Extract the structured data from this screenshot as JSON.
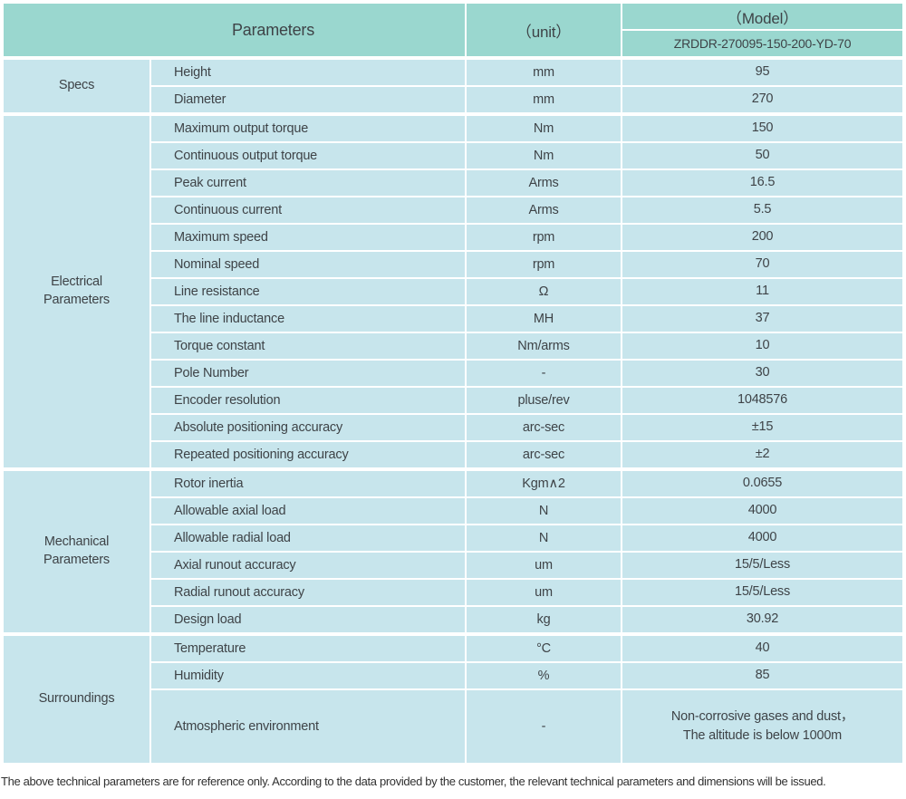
{
  "colors": {
    "header_bg": "#9ad7cf",
    "cell_bg": "#c7e5ec",
    "grid_line": "#ffffff",
    "text": "#3e4347",
    "footer_text": "#303030"
  },
  "table": {
    "header": {
      "parameters_label": "Parameters",
      "unit_label": "（unit）",
      "model_label": "（Model）",
      "model_value": "ZRDDR-270095-150-200-YD-70"
    },
    "groups": [
      {
        "name": "Specs",
        "rows": [
          {
            "param": "Height",
            "unit": "mm",
            "value": "95"
          },
          {
            "param": "Diameter",
            "unit": "mm",
            "value": "270"
          }
        ]
      },
      {
        "name": "Electrical Parameters",
        "rows": [
          {
            "param": "Maximum output torque",
            "unit": "Nm",
            "value": "150"
          },
          {
            "param": "Continuous output torque",
            "unit": "Nm",
            "value": "50"
          },
          {
            "param": "Peak current",
            "unit": "Arms",
            "value": "16.5"
          },
          {
            "param": "Continuous current",
            "unit": "Arms",
            "value": "5.5"
          },
          {
            "param": "Maximum speed",
            "unit": "rpm",
            "value": "200"
          },
          {
            "param": "Nominal speed",
            "unit": "rpm",
            "value": "70"
          },
          {
            "param": "Line resistance",
            "unit": "Ω",
            "value": "11"
          },
          {
            "param": "The line inductance",
            "unit": "MH",
            "value": "37"
          },
          {
            "param": "Torque constant",
            "unit": "Nm/arms",
            "value": "10"
          },
          {
            "param": "Pole Number",
            "unit": "-",
            "value": "30"
          },
          {
            "param": "Encoder resolution",
            "unit": "pluse/rev",
            "value": "1048576"
          },
          {
            "param": "Absolute positioning accuracy",
            "unit": "arc-sec",
            "value": "±15"
          },
          {
            "param": "Repeated positioning accuracy",
            "unit": "arc-sec",
            "value": "±2"
          }
        ]
      },
      {
        "name": "Mechanical Parameters",
        "rows": [
          {
            "param": "Rotor inertia",
            "unit": "Kgm∧2",
            "value": "0.0655"
          },
          {
            "param": "Allowable axial load",
            "unit": "N",
            "value": "4000"
          },
          {
            "param": "Allowable radial load",
            "unit": "N",
            "value": "4000"
          },
          {
            "param": "Axial runout accuracy",
            "unit": "um",
            "value": "15/5/Less"
          },
          {
            "param": "Radial runout accuracy",
            "unit": "um",
            "value": "15/5/Less"
          },
          {
            "param": "Design load",
            "unit": "kg",
            "value": "30.92"
          }
        ]
      },
      {
        "name": "Surroundings",
        "rows": [
          {
            "param": "Temperature",
            "unit": "°C",
            "value": "40"
          },
          {
            "param": "Humidity",
            "unit": "%",
            "value": "85"
          },
          {
            "param": "Atmospheric environment",
            "unit": "-",
            "value": "Non-corrosive gases and dust，\nThe altitude is below 1000m",
            "tall": true
          }
        ]
      }
    ]
  },
  "footer": {
    "note": "The above technical parameters are for reference only. According to the data provided by the customer, the relevant technical parameters and dimensions will be issued."
  }
}
